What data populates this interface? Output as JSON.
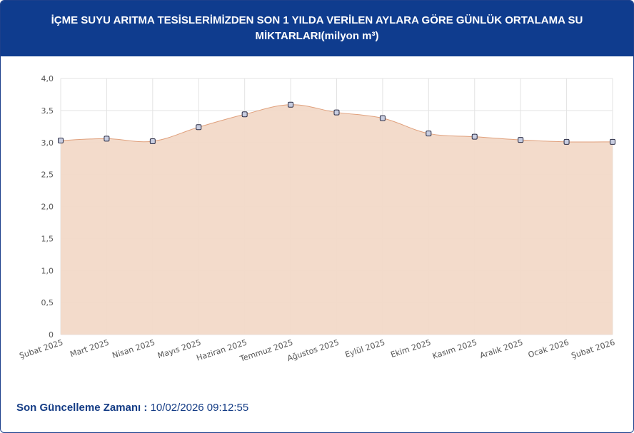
{
  "header": {
    "title": "İÇME SUYU ARITMA TESİSLERİMİZDEN SON 1 YILDA VERİLEN AYLARA GÖRE GÜNLÜK ORTALAMA SU MİKTARLARI(milyon m³)"
  },
  "footer": {
    "label": "Son Güncelleme Zamanı :",
    "value": "10/02/2026 09:12:55"
  },
  "colors": {
    "header_bg": "#0f3c8e",
    "area_fill": "#f2d9c8",
    "line": "#e0a07c",
    "point_fill": "#c8cde0",
    "point_stroke": "#2b2d45"
  },
  "chart_data": {
    "type": "area",
    "title": "İÇME SUYU ARITMA TESİSLERİMİZDEN SON 1 YILDA VERİLEN AYLARA GÖRE GÜNLÜK ORTALAMA SU MİKTARLARI(milyon m³)",
    "categories": [
      "Şubat 2025",
      "Mart 2025",
      "Nisan 2025",
      "Mayıs 2025",
      "Haziran 2025",
      "Temmuz 2025",
      "Ağustos 2025",
      "Eylül 2025",
      "Ekim 2025",
      "Kasım 2025",
      "Aralık 2025",
      "Ocak 2026",
      "Şubat 2026"
    ],
    "series": [
      {
        "values": [
          3.03,
          3.06,
          3.02,
          3.24,
          3.44,
          3.59,
          3.47,
          3.38,
          3.14,
          3.09,
          3.04,
          3.01,
          3.01
        ]
      }
    ],
    "ylim": [
      0,
      4
    ],
    "yticks": [
      "0",
      "0,5",
      "1,0",
      "1,5",
      "2,0",
      "2,5",
      "3,0",
      "3,5",
      "4,0"
    ],
    "grid": true
  }
}
